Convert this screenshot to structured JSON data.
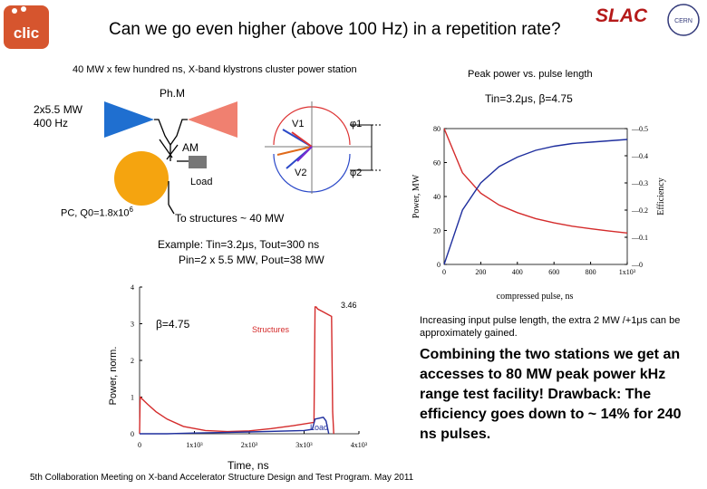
{
  "header": {
    "title": "Can we go even higher (above 100 Hz) in a repetition rate?",
    "logo_left_text": "clic",
    "logo_slac_text": "SLAC",
    "logo_cern_text": "CERN"
  },
  "diagram": {
    "station_caption": "40 MW x few hundred ns, X-band klystrons cluster power station",
    "phm_label": "Ph.M",
    "klystron_power": "2x5.5 MW",
    "klystron_rep": "400 Hz",
    "am_label": "AM",
    "load_label": "Load",
    "cavity_label": "PC, Q0=1.8x10",
    "cavity_label_exp": "6",
    "v1_label": "V1",
    "v2_label": "V2",
    "phi1_label": "φ1",
    "phi2_label": "φ2",
    "to_structures": "To structures ~ 40 MW"
  },
  "example": {
    "line1": "Example: Tin=3.2μs, Tout=300 ns",
    "line2": "Pin=2 x 5.5 MW, Pout=38 MW"
  },
  "chart_right": {
    "caption": "Peak power vs. pulse length",
    "param": "Tin=3.2μs, β=4.75",
    "xlabel": "compressed pulse, ns",
    "ylabel_left": "Power, MW",
    "ylabel_right": "Efficiency"
  },
  "chart_bottom": {
    "beta_label": "β=4.75",
    "xlabel": "Time, ns",
    "ylabel": "Power, norm.",
    "structures_label": "Structures",
    "load_label": "Load",
    "peak_label": "3.46"
  },
  "notes": {
    "increase_text": "Increasing input pulse length, the extra 2 MW /+1μs can be approximately gained.",
    "combine_text": "Combining the two stations we get an accesses to 80 MW peak power kHz range test facility! Drawback: The efficiency goes down to ~ 14% for 240 ns pulses."
  },
  "footer": "5th Collaboration Meeting on X-band Accelerator Structure Design and Test Program. May 2011",
  "chart_data": [
    {
      "type": "line",
      "title": "Peak power vs. pulse length",
      "xlabel": "compressed pulse, ns",
      "ylabel": "Power, MW",
      "y2label": "Efficiency",
      "xlim": [
        0,
        1000
      ],
      "ylim": [
        0,
        80
      ],
      "y2lim": [
        0,
        0.5
      ],
      "x_ticks": [
        "0",
        "200",
        "400",
        "600",
        "800",
        "1x10³"
      ],
      "y_ticks": [
        "0",
        "20",
        "40",
        "60",
        "80"
      ],
      "y2_ticks": [
        "0",
        "0.1",
        "0.2",
        "0.3",
        "0.4",
        "0.5"
      ],
      "series": [
        {
          "name": "Power",
          "axis": "left",
          "color": "#d42b2b",
          "x": [
            0,
            100,
            200,
            300,
            400,
            500,
            600,
            700,
            800,
            900,
            1000
          ],
          "values": [
            80,
            54,
            42,
            35,
            30.5,
            27,
            24.5,
            22.5,
            21,
            19.7,
            18.5
          ]
        },
        {
          "name": "Efficiency",
          "axis": "right",
          "color": "#1f2f9e",
          "x": [
            0,
            100,
            200,
            300,
            400,
            500,
            600,
            700,
            800,
            900,
            1000
          ],
          "values": [
            0,
            0.2,
            0.3,
            0.36,
            0.395,
            0.42,
            0.435,
            0.445,
            0.45,
            0.455,
            0.46
          ]
        }
      ]
    },
    {
      "type": "line",
      "xlabel": "Time, ns",
      "ylabel": "Power, norm.",
      "xlim": [
        0,
        4000
      ],
      "ylim": [
        0,
        4
      ],
      "x_ticks": [
        "0",
        "1x10³",
        "2x10³",
        "3x10³",
        "4x10³"
      ],
      "y_ticks": [
        "0",
        "1",
        "2",
        "3",
        "4"
      ],
      "series": [
        {
          "name": "Structures",
          "color": "#d42b2b",
          "x": [
            0,
            10,
            150,
            300,
            500,
            800,
            1200,
            1600,
            2000,
            2400,
            2800,
            3180,
            3200,
            3220,
            3250,
            3350,
            3450,
            3500,
            3520,
            3540
          ],
          "values": [
            0,
            1.0,
            0.8,
            0.6,
            0.4,
            0.2,
            0.09,
            0.06,
            0.08,
            0.14,
            0.22,
            0.31,
            3.46,
            3.46,
            3.4,
            3.32,
            3.24,
            3.2,
            0.6,
            0
          ]
        },
        {
          "name": "Load",
          "color": "#1f2f9e",
          "x": [
            0,
            50,
            500,
            1000,
            2000,
            3000,
            3150,
            3200,
            3350,
            3400,
            3450
          ],
          "values": [
            0,
            0,
            0,
            0.02,
            0.05,
            0.09,
            0.12,
            0.4,
            0.45,
            0.35,
            0.0
          ]
        }
      ]
    }
  ]
}
